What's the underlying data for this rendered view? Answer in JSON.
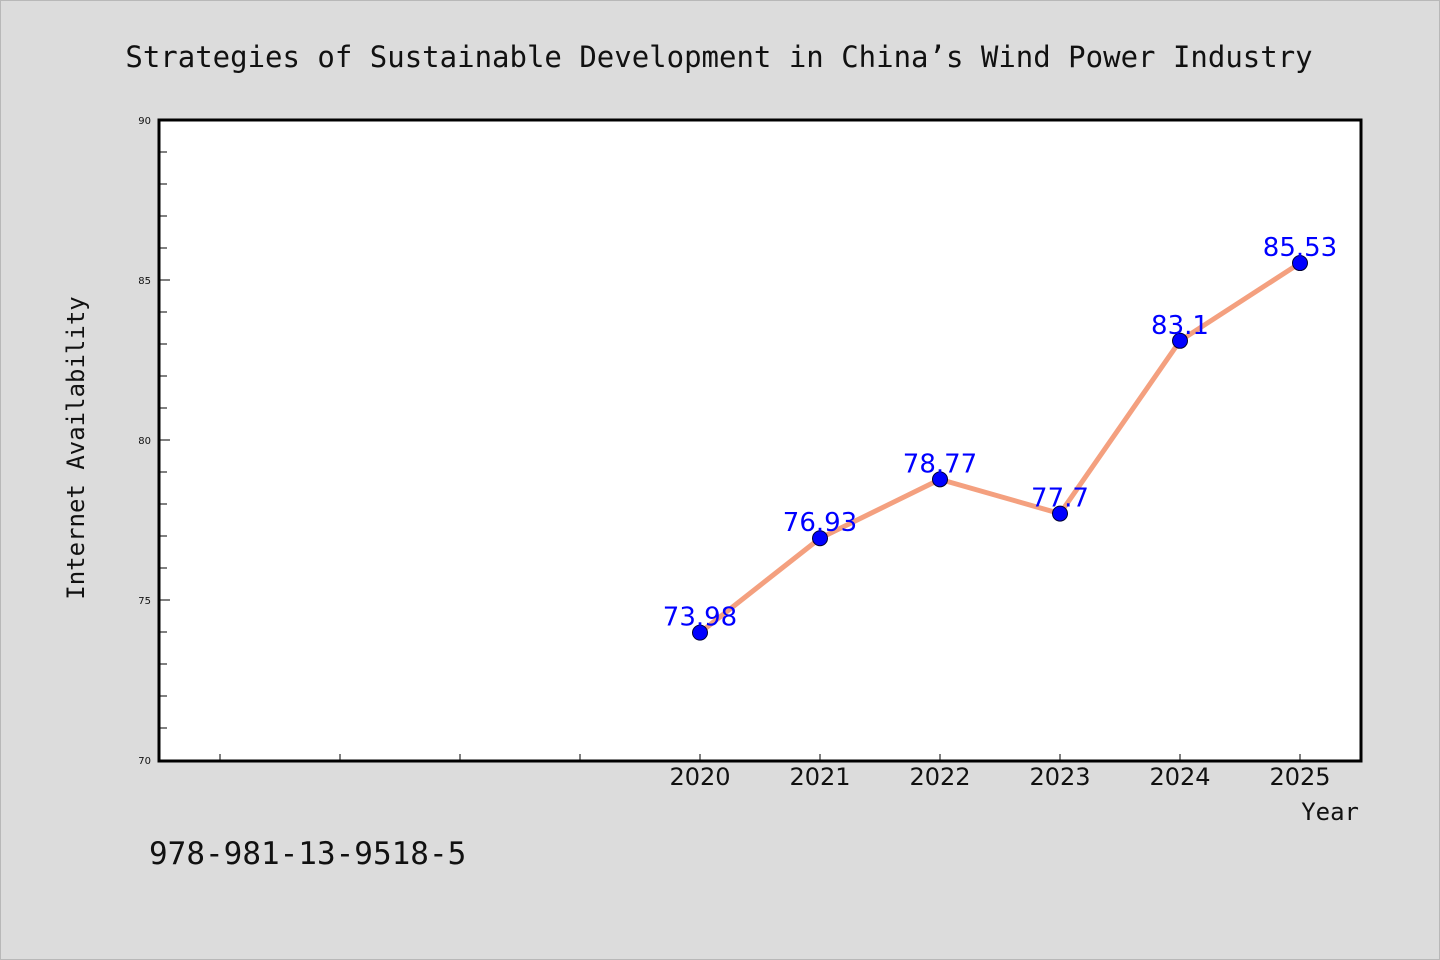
{
  "colors": {
    "background": "#dcdcdc",
    "plot_background": "#ffffff",
    "line": "#f4a07f",
    "marker": "#0000ff",
    "data_label": "#0000ff"
  },
  "chart_data": {
    "type": "line",
    "title": "Strategies of Sustainable Development in China’s Wind Power Industry",
    "xlabel": "Year",
    "ylabel": "Internet Availability",
    "x_tick_labels": [
      "",
      "",
      "",
      "",
      "2020",
      "2021",
      "2022",
      "2023",
      "2024",
      "2025"
    ],
    "x": [
      "2020",
      "2021",
      "2022",
      "2023",
      "2024",
      "2025"
    ],
    "series": [
      {
        "values": [
          73.98,
          76.93,
          78.77,
          77.7,
          83.1,
          85.53
        ]
      }
    ],
    "data_labels": [
      "73.98",
      "76.93",
      "78.77",
      "77.7",
      "83.1",
      "85.53"
    ],
    "ylim": [
      70,
      90
    ],
    "y_ticks": [
      70,
      75,
      80,
      85,
      90
    ],
    "y_tick_labels": [
      "70",
      "75",
      "80",
      "85",
      "90"
    ],
    "grid": false,
    "legend": "none"
  },
  "footer": {
    "isbn": "978-981-13-9518-5"
  }
}
